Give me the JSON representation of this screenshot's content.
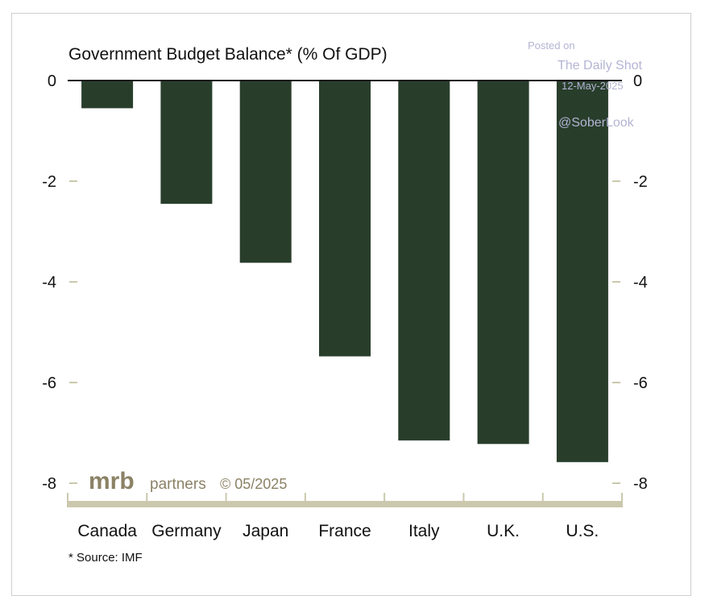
{
  "chart_data": {
    "type": "bar",
    "title": "Government Budget Balance* (% Of GDP)",
    "categories": [
      "Canada",
      "Germany",
      "Japan",
      "France",
      "Italy",
      "U.K.",
      "U.S."
    ],
    "values": [
      -0.55,
      -2.45,
      -3.62,
      -5.48,
      -7.15,
      -7.22,
      -7.58
    ],
    "ylim": [
      -8,
      0
    ],
    "yticks": [
      0,
      -2,
      -4,
      -6,
      -8
    ],
    "grid": false,
    "bar_color": "#283e2b",
    "footnote": "* Source: IMF",
    "branding": {
      "logo": "mrb",
      "partners": "partners",
      "date": "© 05/2025"
    },
    "watermark": {
      "posted": "Posted on",
      "source": "The Daily Shot",
      "date": "12-May-2025",
      "handle": "@SoberLook"
    }
  }
}
